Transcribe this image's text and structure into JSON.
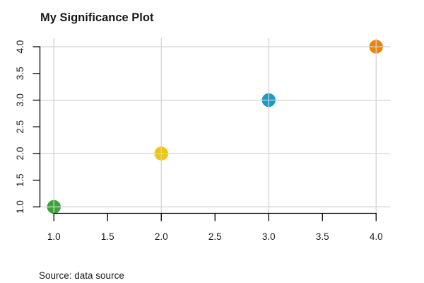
{
  "header": {
    "title": "My Significance Plot"
  },
  "footer": {
    "source": "Source: data source"
  },
  "chart_data": {
    "type": "scatter",
    "title": "My Significance Plot",
    "caption": "Source: data source",
    "points": [
      {
        "x": 1,
        "y": 1,
        "color": "#3aa33a",
        "color_name": "green"
      },
      {
        "x": 2,
        "y": 2,
        "color": "#f2c40f",
        "color_name": "gold"
      },
      {
        "x": 3,
        "y": 3,
        "color": "#1a9cc6",
        "color_name": "blue"
      },
      {
        "x": 4,
        "y": 4,
        "color": "#f08200",
        "color_name": "orange"
      }
    ],
    "marker_radius_px": 9.7,
    "x_ticks": [
      "1.0",
      "1.5",
      "2.0",
      "2.5",
      "3.0",
      "3.5",
      "4.0"
    ],
    "y_ticks": [
      "1.0",
      "1.5",
      "2.0",
      "2.5",
      "3.0",
      "3.5",
      "4.0"
    ],
    "x_tick_values": [
      1,
      1.5,
      2,
      2.5,
      3,
      3.5,
      4
    ],
    "y_tick_values": [
      1,
      1.5,
      2,
      2.5,
      3,
      3.5,
      4
    ],
    "grid_values": [
      1,
      2,
      3,
      4
    ],
    "xlim": [
      0.87,
      4.13
    ],
    "ylim": [
      0.88,
      4.16
    ],
    "grid": true,
    "grid_on_top_of_points": true,
    "grid_color": "#d3d3d3",
    "axis_color": "#000000",
    "text_color": "#1a1a1a",
    "background_color": "#ffffff",
    "legend": "none",
    "xlabel": "",
    "ylabel": "",
    "y_tick_label_rotation_deg": -90
  }
}
